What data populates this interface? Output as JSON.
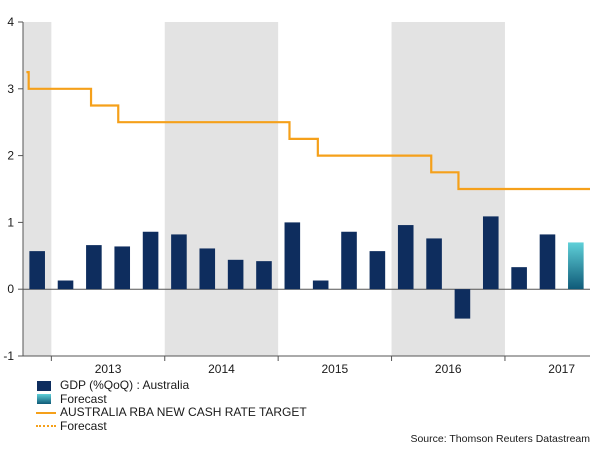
{
  "colors": {
    "gdp": "#0e2d5e",
    "forecast_bar_top": "#5fd0d8",
    "forecast_bar_bottom": "#0f5a78",
    "rate": "#f5a01a",
    "shade": "#e3e3e3",
    "axis": "#555555"
  },
  "legend": {
    "gdp_label": "GDP (%QoQ) : Australia",
    "gdp_forecast_label": "Forecast",
    "rate_label": "AUSTRALIA RBA NEW CASH RATE TARGET",
    "rate_forecast_label": "Forecast"
  },
  "source": "Source: Thomson Reuters Datastream",
  "chart_data": {
    "type": "bar+line",
    "title": "",
    "xlabel": "",
    "ylabel": "",
    "ylim": [
      -1,
      4
    ],
    "yticks": [
      -1,
      0,
      1,
      2,
      3,
      4
    ],
    "ytick_labels": [
      "-1",
      "0",
      "1",
      "2",
      "3",
      "4"
    ],
    "year_labels": [
      "2013",
      "2014",
      "2015",
      "2016",
      "2017"
    ],
    "shaded_years": [
      "2012",
      "2014",
      "2016"
    ],
    "x_start": 2012.75,
    "x_end": 2017.75,
    "gdp_series": {
      "name": "GDP (%QoQ) : Australia",
      "points": [
        {
          "quarter": "2012-Q4",
          "value": 0.57
        },
        {
          "quarter": "2013-Q1",
          "value": 0.13
        },
        {
          "quarter": "2013-Q2",
          "value": 0.66
        },
        {
          "quarter": "2013-Q3",
          "value": 0.64
        },
        {
          "quarter": "2013-Q4",
          "value": 0.86
        },
        {
          "quarter": "2014-Q1",
          "value": 0.82
        },
        {
          "quarter": "2014-Q2",
          "value": 0.61
        },
        {
          "quarter": "2014-Q3",
          "value": 0.44
        },
        {
          "quarter": "2014-Q4",
          "value": 0.42
        },
        {
          "quarter": "2015-Q1",
          "value": 1.0
        },
        {
          "quarter": "2015-Q2",
          "value": 0.13
        },
        {
          "quarter": "2015-Q3",
          "value": 0.86
        },
        {
          "quarter": "2015-Q4",
          "value": 0.57
        },
        {
          "quarter": "2016-Q1",
          "value": 0.96
        },
        {
          "quarter": "2016-Q2",
          "value": 0.76
        },
        {
          "quarter": "2016-Q3",
          "value": -0.44
        },
        {
          "quarter": "2016-Q4",
          "value": 1.09
        },
        {
          "quarter": "2017-Q1",
          "value": 0.33
        },
        {
          "quarter": "2017-Q2",
          "value": 0.82
        }
      ]
    },
    "gdp_forecast": {
      "name": "Forecast",
      "points": [
        {
          "quarter": "2017-Q3",
          "value": 0.7
        }
      ]
    },
    "rate_series": {
      "name": "AUSTRALIA RBA NEW CASH RATE TARGET",
      "steps": [
        {
          "x": 2012.78,
          "value": 3.25
        },
        {
          "x": 2012.8,
          "value": 3.0
        },
        {
          "x": 2013.35,
          "value": 2.75
        },
        {
          "x": 2013.59,
          "value": 2.5
        },
        {
          "x": 2015.1,
          "value": 2.25
        },
        {
          "x": 2015.35,
          "value": 2.0
        },
        {
          "x": 2016.35,
          "value": 1.75
        },
        {
          "x": 2016.59,
          "value": 1.5
        },
        {
          "x": 2017.75,
          "value": 1.5
        }
      ]
    }
  }
}
